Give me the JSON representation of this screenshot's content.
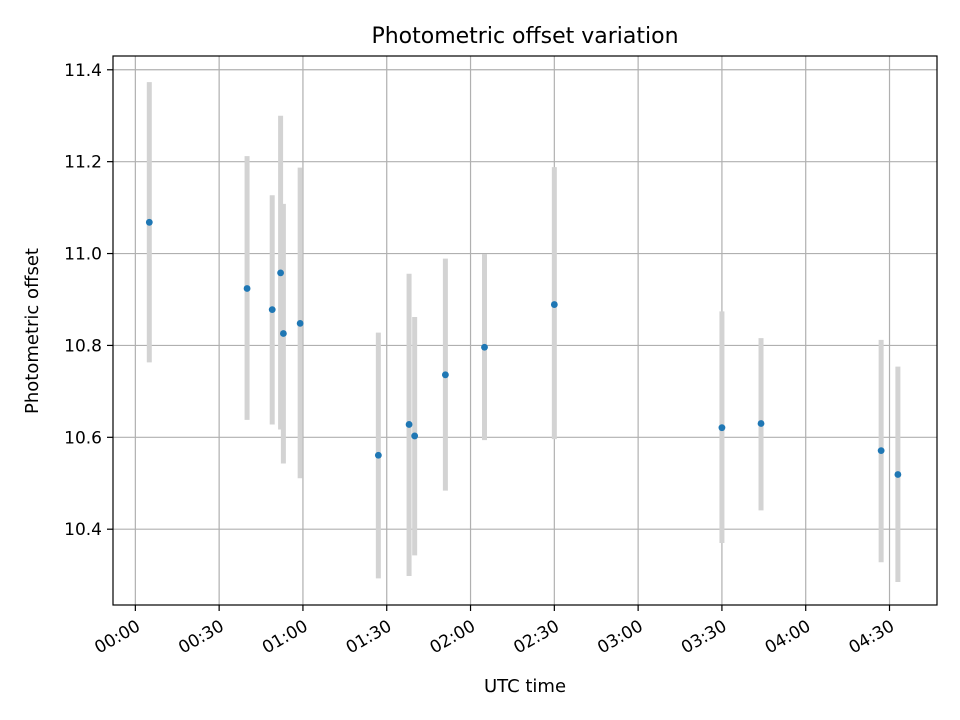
{
  "chart_data": {
    "type": "scatter",
    "title": "Photometric offset variation",
    "xlabel": "UTC time",
    "ylabel": "Photometric offset",
    "xlim": [
      "23:52",
      "04:47"
    ],
    "ylim": [
      10.235,
      11.43
    ],
    "x_ticks": [
      "00:00",
      "00:30",
      "01:00",
      "01:30",
      "02:00",
      "02:30",
      "03:00",
      "03:30",
      "04:00",
      "04:30"
    ],
    "y_ticks": [
      10.4,
      10.6,
      10.8,
      11.0,
      11.2,
      11.4
    ],
    "y_tick_labels": [
      "10.4",
      "10.6",
      "10.8",
      "11.0",
      "11.2",
      "11.4"
    ],
    "grid": true,
    "marker_color": "#1f77b4",
    "errorbar_color": "#d3d3d3",
    "points": [
      {
        "x": "00:05",
        "y": 11.068,
        "ylow": 10.763,
        "yhigh": 11.373
      },
      {
        "x": "00:40",
        "y": 10.924,
        "ylow": 10.638,
        "yhigh": 11.212
      },
      {
        "x": "00:49",
        "y": 10.878,
        "ylow": 10.628,
        "yhigh": 11.127
      },
      {
        "x": "00:52",
        "y": 10.958,
        "ylow": 10.617,
        "yhigh": 11.3
      },
      {
        "x": "00:53",
        "y": 10.826,
        "ylow": 10.543,
        "yhigh": 11.108
      },
      {
        "x": "00:59",
        "y": 10.848,
        "ylow": 10.511,
        "yhigh": 11.187
      },
      {
        "x": "01:27",
        "y": 10.561,
        "ylow": 10.293,
        "yhigh": 10.828
      },
      {
        "x": "01:38",
        "y": 10.628,
        "ylow": 10.298,
        "yhigh": 10.956
      },
      {
        "x": "01:40",
        "y": 10.603,
        "ylow": 10.343,
        "yhigh": 10.862
      },
      {
        "x": "01:51",
        "y": 10.736,
        "ylow": 10.484,
        "yhigh": 10.989
      },
      {
        "x": "02:05",
        "y": 10.796,
        "ylow": 10.594,
        "yhigh": 10.999
      },
      {
        "x": "02:30",
        "y": 10.889,
        "ylow": 10.596,
        "yhigh": 11.188
      },
      {
        "x": "03:30",
        "y": 10.621,
        "ylow": 10.37,
        "yhigh": 10.874
      },
      {
        "x": "03:44",
        "y": 10.63,
        "ylow": 10.441,
        "yhigh": 10.816
      },
      {
        "x": "04:27",
        "y": 10.571,
        "ylow": 10.328,
        "yhigh": 10.812
      },
      {
        "x": "04:33",
        "y": 10.519,
        "ylow": 10.285,
        "yhigh": 10.754
      }
    ]
  }
}
